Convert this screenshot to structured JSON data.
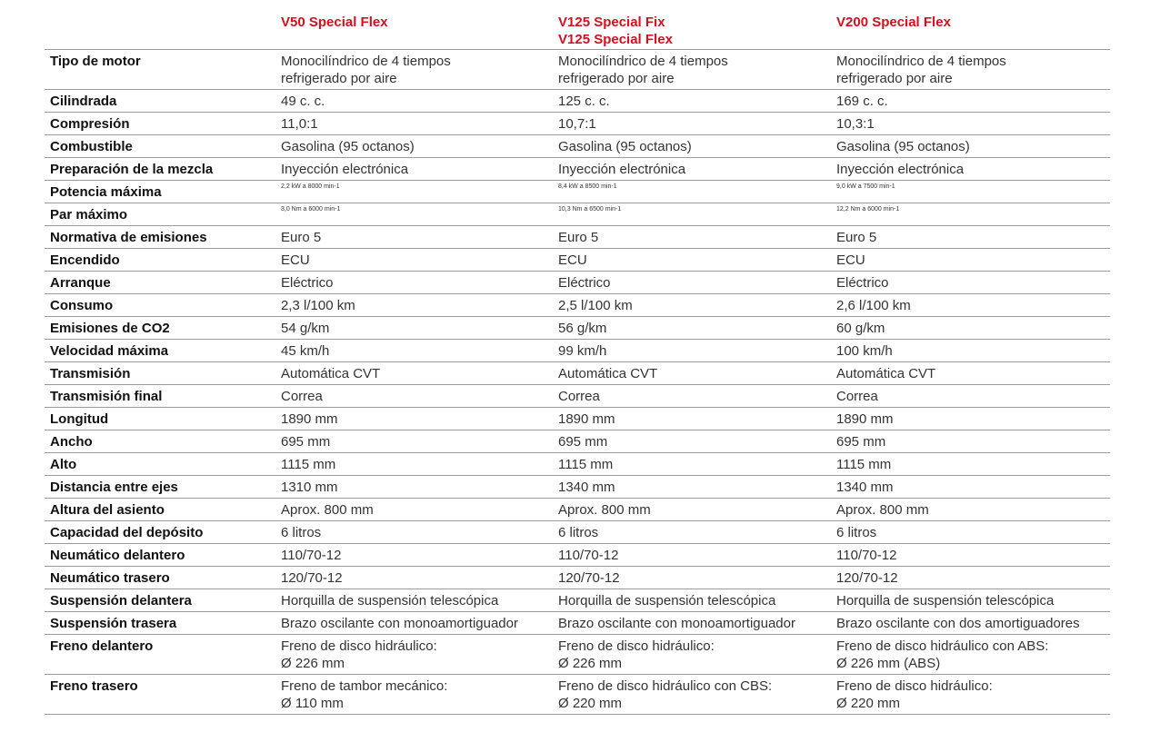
{
  "models": [
    {
      "lines": [
        "V50 Special Flex"
      ]
    },
    {
      "lines": [
        "V125 Special Fix",
        "V125 Special Flex"
      ]
    },
    {
      "lines": [
        "V200 Special Flex"
      ]
    }
  ],
  "accent_color": "#d4101f",
  "rows": [
    {
      "label": "Tipo de motor",
      "values": [
        [
          "Monocilíndrico de 4 tiempos",
          "refrigerado por aire"
        ],
        [
          "Monocilíndrico de 4 tiempos",
          "refrigerado por aire"
        ],
        [
          "Monocilíndrico de 4 tiempos",
          "refrigerado por aire"
        ]
      ]
    },
    {
      "label": "Cilindrada",
      "values": [
        [
          "49 c. c."
        ],
        [
          "125 c. c."
        ],
        [
          "169 c. c."
        ]
      ]
    },
    {
      "label": "Compresión",
      "values": [
        [
          "11,0:1"
        ],
        [
          "10,7:1"
        ],
        [
          "10,3:1"
        ]
      ]
    },
    {
      "label": "Combustible",
      "values": [
        [
          "Gasolina (95 octanos)"
        ],
        [
          "Gasolina (95 octanos)"
        ],
        [
          "Gasolina (95 octanos)"
        ]
      ]
    },
    {
      "label": "Preparación de la mezcla",
      "values": [
        [
          "Inyección electrónica"
        ],
        [
          "Inyección electrónica"
        ],
        [
          "Inyección electrónica"
        ]
      ]
    },
    {
      "label": "Potencia máxima",
      "values": [
        [
          "2,2 kW a 8000 min-1"
        ],
        [
          "8,4 kW a 8500 min-1"
        ],
        [
          "9,0 kW a 7500 min-1"
        ]
      ]
    },
    {
      "label": "Par máximo",
      "values": [
        [
          "3,0 Nm a 6000 min-1"
        ],
        [
          "10,3 Nm a 6500 min-1"
        ],
        [
          "12,2 Nm a 6000 min-1"
        ]
      ]
    },
    {
      "label": "Normativa de emisiones",
      "values": [
        [
          "Euro 5"
        ],
        [
          "Euro 5"
        ],
        [
          "Euro 5"
        ]
      ]
    },
    {
      "label": "Encendido",
      "values": [
        [
          "ECU"
        ],
        [
          "ECU"
        ],
        [
          "ECU"
        ]
      ]
    },
    {
      "label": "Arranque",
      "values": [
        [
          "Eléctrico"
        ],
        [
          "Eléctrico"
        ],
        [
          "Eléctrico"
        ]
      ]
    },
    {
      "label": "Consumo",
      "values": [
        [
          "2,3 l/100 km"
        ],
        [
          "2,5 l/100 km"
        ],
        [
          "2,6 l/100 km"
        ]
      ]
    },
    {
      "label": "Emisiones de CO2",
      "values": [
        [
          "54 g/km"
        ],
        [
          "56 g/km"
        ],
        [
          "60 g/km"
        ]
      ]
    },
    {
      "label": "Velocidad máxima",
      "values": [
        [
          "45 km/h"
        ],
        [
          "99 km/h"
        ],
        [
          "100 km/h"
        ]
      ]
    },
    {
      "label": "Transmisión",
      "values": [
        [
          "Automática CVT"
        ],
        [
          "Automática CVT"
        ],
        [
          "Automática CVT"
        ]
      ]
    },
    {
      "label": "Transmisión final",
      "values": [
        [
          "Correa"
        ],
        [
          "Correa"
        ],
        [
          "Correa"
        ]
      ]
    },
    {
      "label": "Longitud",
      "values": [
        [
          "1890 mm"
        ],
        [
          "1890 mm"
        ],
        [
          "1890 mm"
        ]
      ]
    },
    {
      "label": "Ancho",
      "values": [
        [
          "695 mm"
        ],
        [
          "695 mm"
        ],
        [
          "695 mm"
        ]
      ]
    },
    {
      "label": "Alto",
      "values": [
        [
          "1115 mm"
        ],
        [
          "1115 mm"
        ],
        [
          "1115 mm"
        ]
      ]
    },
    {
      "label": "Distancia entre ejes",
      "values": [
        [
          "1310 mm"
        ],
        [
          "1340 mm"
        ],
        [
          "1340 mm"
        ]
      ]
    },
    {
      "label": "Altura del asiento",
      "values": [
        [
          "Aprox. 800 mm"
        ],
        [
          "Aprox. 800 mm"
        ],
        [
          "Aprox. 800 mm"
        ]
      ]
    },
    {
      "label": "Capacidad del depósito",
      "values": [
        [
          "6 litros"
        ],
        [
          "6 litros"
        ],
        [
          "6 litros"
        ]
      ]
    },
    {
      "label": "Neumático delantero",
      "values": [
        [
          "110/70-12"
        ],
        [
          "110/70-12"
        ],
        [
          "110/70-12"
        ]
      ]
    },
    {
      "label": "Neumático trasero",
      "values": [
        [
          "120/70-12"
        ],
        [
          "120/70-12"
        ],
        [
          "120/70-12"
        ]
      ]
    },
    {
      "label": "Suspensión delantera",
      "values": [
        [
          "Horquilla de suspensión telescópica"
        ],
        [
          "Horquilla de suspensión telescópica"
        ],
        [
          "Horquilla de suspensión telescópica"
        ]
      ]
    },
    {
      "label": "Suspensión trasera",
      "values": [
        [
          "Brazo oscilante con monoamortiguador"
        ],
        [
          "Brazo oscilante con monoamortiguador"
        ],
        [
          "Brazo oscilante con dos amortiguadores"
        ]
      ]
    },
    {
      "label": "Freno delantero",
      "values": [
        [
          "Freno de disco hidráulico:",
          "Ø 226 mm"
        ],
        [
          "Freno de disco hidráulico:",
          "Ø 226 mm"
        ],
        [
          "Freno de disco hidráulico con ABS:",
          "Ø 226 mm (ABS)"
        ]
      ]
    },
    {
      "label": "Freno trasero",
      "values": [
        [
          "Freno de tambor mecánico:",
          "Ø 110 mm"
        ],
        [
          "Freno de disco hidráulico con CBS:",
          "Ø 220 mm"
        ],
        [
          "Freno de disco hidráulico:",
          "Ø 220 mm"
        ]
      ]
    }
  ]
}
